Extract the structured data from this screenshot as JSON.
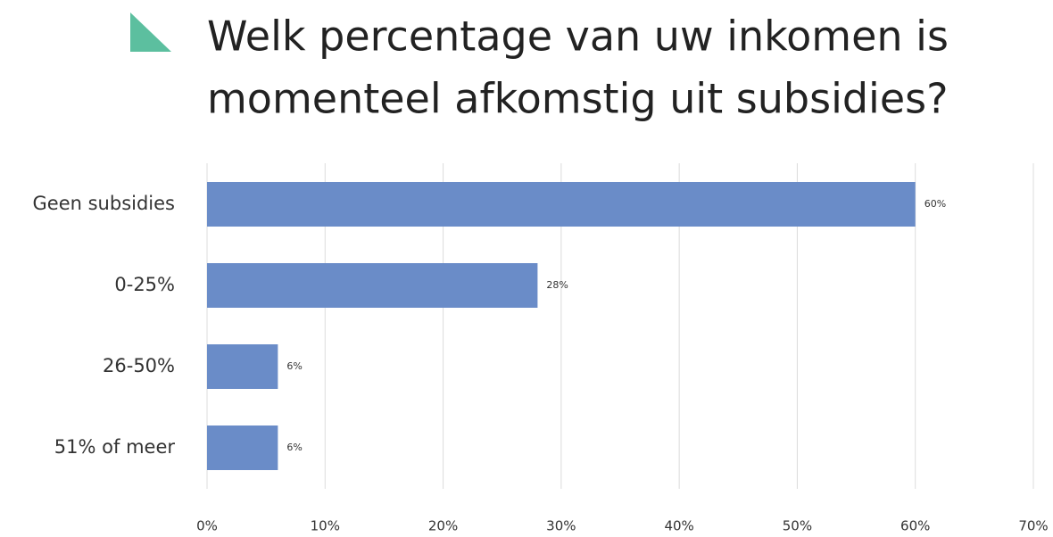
{
  "chart_data": {
    "type": "barh",
    "title": [
      "Welk percentage van uw inkomen is",
      "momenteel afkomstig uit subsidies?"
    ],
    "categories": [
      "Geen subsidies",
      "0-25%",
      "26-50%",
      "51% of meer"
    ],
    "values": [
      60,
      28,
      6,
      6
    ],
    "value_labels": [
      "60%",
      "28%",
      "6%",
      "6%"
    ],
    "color": "#6a8cc8",
    "xlim": [
      0,
      70
    ],
    "xticks": [
      {
        "value": 0,
        "label": "0%"
      },
      {
        "value": 10,
        "label": "10%"
      },
      {
        "value": 20,
        "label": "20%"
      },
      {
        "value": 30,
        "label": "30%"
      },
      {
        "value": 40,
        "label": "40%"
      },
      {
        "value": 50,
        "label": "50%"
      },
      {
        "value": 60,
        "label": "60%"
      },
      {
        "value": 70,
        "label": "70%"
      }
    ],
    "grid": true
  }
}
